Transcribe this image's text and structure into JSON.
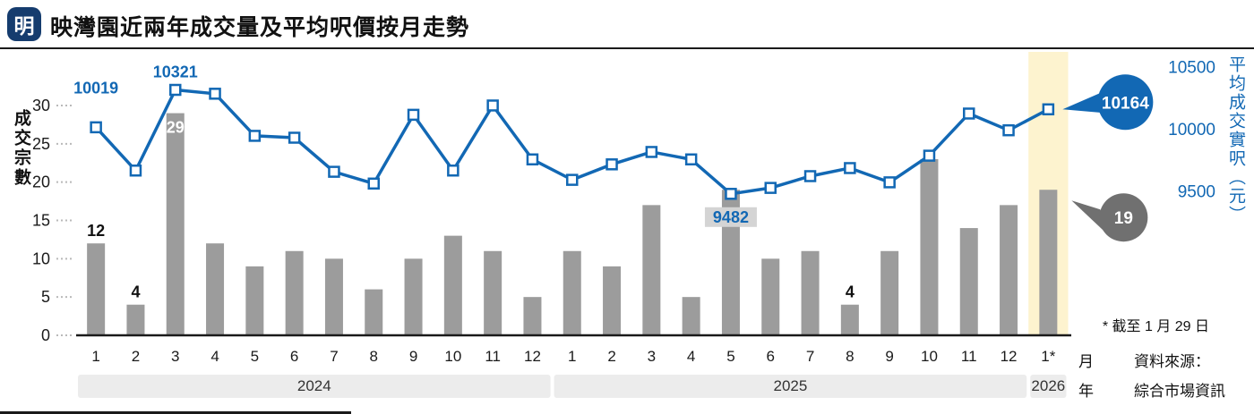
{
  "header": {
    "logo": "明",
    "title": "映灣園近兩年成交量及平均呎價按月走勢"
  },
  "left_axis": {
    "title": "成交宗數",
    "ticks": [
      0,
      5,
      10,
      15,
      20,
      25,
      30
    ]
  },
  "right_axis": {
    "title": "平均成交實呎（元）",
    "ticks": [
      10500,
      10000,
      9500
    ]
  },
  "footnote": "* 截至 1 月 29 日",
  "source": {
    "line1": "資料來源：",
    "line2": "綜合市場資訊"
  },
  "x_unit_month": "月",
  "x_unit_year": "年",
  "colors": {
    "accent_blue": "#1268b4",
    "bar_gray": "#9c9c9c",
    "callout_gray": "#707070",
    "highlight_yellow": "#fdf3cf",
    "year_band_gray": "#ececec",
    "axis_black": "#1a1a1a"
  },
  "chart_data": {
    "type": "bar",
    "subtype": "bar+line combo",
    "title": "映灣園近兩年成交量及平均呎價按月走勢",
    "categories": [
      "1",
      "2",
      "3",
      "4",
      "5",
      "6",
      "7",
      "8",
      "9",
      "10",
      "11",
      "12",
      "1",
      "2",
      "3",
      "4",
      "5",
      "6",
      "7",
      "8",
      "9",
      "10",
      "11",
      "12",
      "1*"
    ],
    "year_groups": [
      {
        "label": "2024",
        "span": 12
      },
      {
        "label": "2025",
        "span": 12
      },
      {
        "label": "2026",
        "span": 1
      }
    ],
    "series": [
      {
        "name": "成交宗數",
        "type": "bar",
        "axis": "left",
        "values": [
          12,
          4,
          29,
          12,
          9,
          11,
          10,
          6,
          10,
          13,
          11,
          5,
          11,
          9,
          17,
          5,
          19,
          10,
          11,
          4,
          11,
          23,
          14,
          17,
          19
        ]
      },
      {
        "name": "平均成交實呎（元）",
        "type": "line",
        "axis": "right",
        "values": [
          10019,
          9670,
          10321,
          10290,
          9950,
          9935,
          9660,
          9565,
          10120,
          9670,
          10195,
          9760,
          9595,
          9720,
          9820,
          9760,
          9482,
          9530,
          9625,
          9690,
          9575,
          9790,
          10130,
          9995,
          10164
        ]
      }
    ],
    "left_axis_range": [
      0,
      30
    ],
    "right_axis_range": [
      9500,
      10500
    ],
    "grid": "off",
    "legend": "none",
    "bar_labels": [
      {
        "index": 0,
        "text": "12",
        "pos": "above"
      },
      {
        "index": 1,
        "text": "4",
        "pos": "above"
      },
      {
        "index": 2,
        "text": "29",
        "pos": "inside"
      },
      {
        "index": 19,
        "text": "4",
        "pos": "above"
      }
    ],
    "line_labels": [
      {
        "index": 0,
        "text": "10019",
        "dy": -38
      },
      {
        "index": 2,
        "text": "10321",
        "dy": -14
      },
      {
        "index": 16,
        "text": "9482",
        "dy": 32,
        "bg": true
      }
    ],
    "callouts": [
      {
        "series": "price",
        "text": "10164"
      },
      {
        "series": "volume",
        "text": "19"
      }
    ],
    "highlight_index": 24
  }
}
